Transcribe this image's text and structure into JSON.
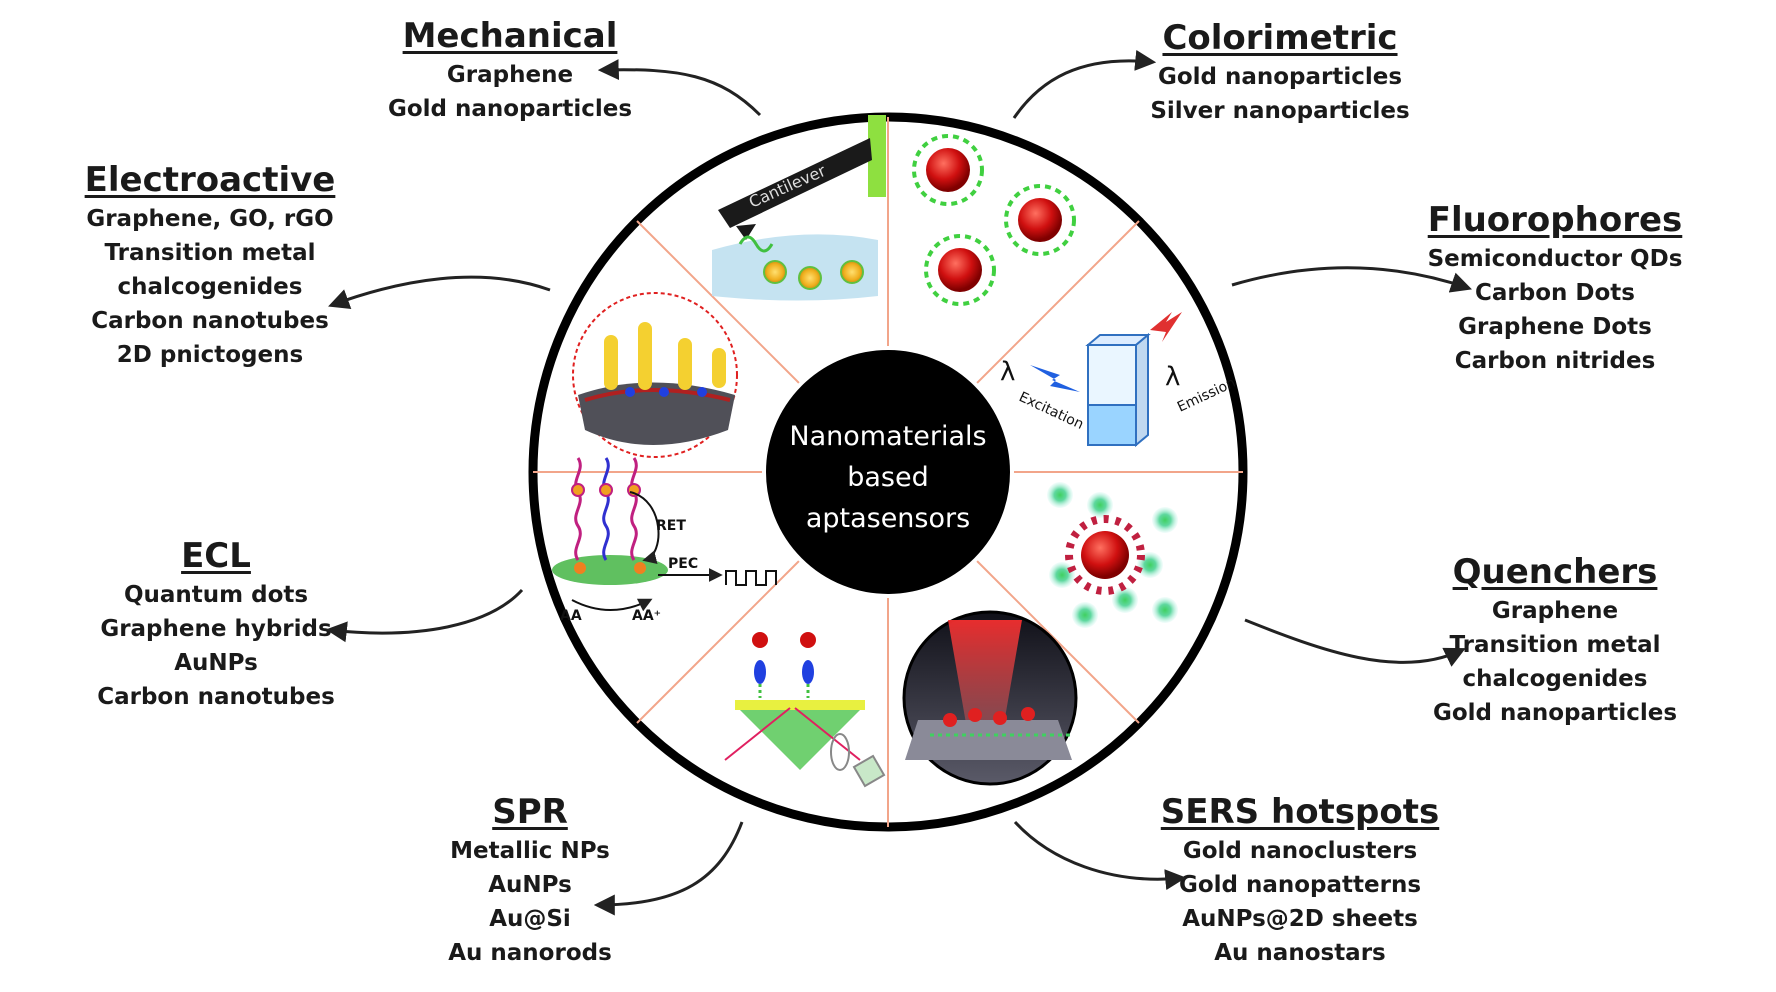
{
  "center": {
    "lines": [
      "Nanomaterials",
      "based",
      "aptasensors"
    ]
  },
  "categories": [
    {
      "id": "mechanical",
      "title": "Mechanical",
      "items": [
        "Graphene",
        "Gold nanoparticles"
      ]
    },
    {
      "id": "colorimetric",
      "title": "Colorimetric",
      "items": [
        "Gold nanoparticles",
        "Silver nanoparticles"
      ]
    },
    {
      "id": "electroactive",
      "title": "Electroactive",
      "items": [
        "Graphene, GO, rGO",
        "Transition metal",
        "chalcogenides",
        "Carbon nanotubes",
        "2D pnictogens"
      ]
    },
    {
      "id": "fluorophores",
      "title": "Fluorophores",
      "items": [
        "Semiconductor QDs",
        "Carbon Dots",
        "Graphene Dots",
        "Carbon nitrides"
      ]
    },
    {
      "id": "ecl",
      "title": "ECL",
      "items": [
        "Quantum dots",
        "Graphene hybrids",
        "AuNPs",
        "Carbon nanotubes"
      ]
    },
    {
      "id": "quenchers",
      "title": "Quenchers",
      "items": [
        "Graphene",
        "Transition metal",
        "chalcogenides",
        "Gold nanoparticles"
      ]
    },
    {
      "id": "spr",
      "title": "SPR",
      "items": [
        "Metallic NPs",
        "AuNPs",
        "Au@Si",
        "Au nanorods"
      ]
    },
    {
      "id": "sers",
      "title": "SERS hotspots",
      "items": [
        "Gold nanoclusters",
        "Gold nanopatterns",
        "AuNPs@2D sheets",
        "Au nanostars"
      ]
    }
  ],
  "illustration_labels": {
    "cantilever": "Cantilever",
    "excitation": "Excitation",
    "emission": "Emission",
    "lambda": "λ",
    "ret": "RET",
    "pec": "PEC",
    "aa": "AA",
    "aa_plus": "AA⁺"
  },
  "colors": {
    "ring": "#000000",
    "spoke": "#f2a58a",
    "hub": "#000000",
    "gold": "#f0c030",
    "red_particle": "#d01010",
    "green_ligand": "#30c030",
    "cyan_glow": "#7fe0d0"
  }
}
